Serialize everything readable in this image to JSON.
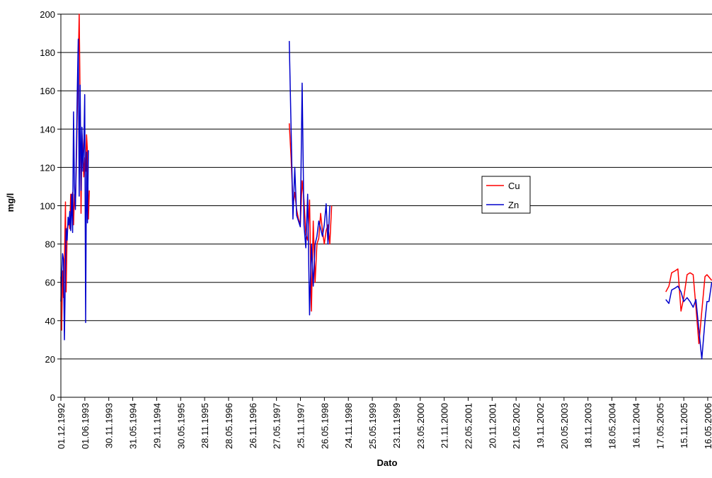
{
  "chart_data": {
    "type": "line",
    "title": "",
    "xlabel": "Dato",
    "ylabel": "mg/l",
    "ylim": [
      0,
      200
    ],
    "yticks": [
      0,
      20,
      40,
      60,
      80,
      100,
      120,
      140,
      160,
      180,
      200
    ],
    "grid": "horizontal",
    "legend_position": "right-center",
    "x_tick_labels": [
      "01.12.1992",
      "01.06.1993",
      "30.11.1993",
      "31.05.1994",
      "29.11.1994",
      "30.05.1995",
      "28.11.1995",
      "28.05.1996",
      "26.11.1996",
      "27.05.1997",
      "25.11.1997",
      "26.05.1998",
      "24.11.1998",
      "25.05.1999",
      "23.11.1999",
      "23.05.2000",
      "21.11.2000",
      "22.05.2001",
      "20.11.2001",
      "21.05.2002",
      "19.11.2002",
      "20.05.2003",
      "18.11.2003",
      "18.05.2004",
      "16.11.2004",
      "17.05.2005",
      "15.11.2005",
      "16.05.2006"
    ],
    "series": [
      {
        "name": "Cu",
        "color": "#ff0000",
        "segments": [
          [
            [
              "01.12.1992",
              63
            ],
            [
              "07.12.1992",
              35
            ],
            [
              "14.12.1992",
              66
            ],
            [
              "21.12.1992",
              52
            ],
            [
              "28.12.1992",
              70
            ],
            [
              "05.01.1993",
              102
            ],
            [
              "10.01.1993",
              55
            ],
            [
              "18.01.1993",
              88
            ],
            [
              "25.01.1993",
              90
            ],
            [
              "01.02.1993",
              92
            ],
            [
              "07.02.1993",
              88
            ],
            [
              "14.02.1993",
              106
            ],
            [
              "21.02.1993",
              95
            ],
            [
              "28.02.1993",
              107
            ],
            [
              "07.03.1993",
              90
            ],
            [
              "14.03.1993",
              106
            ],
            [
              "21.03.1993",
              100
            ],
            [
              "28.03.1993",
              120
            ],
            [
              "05.04.1993",
              150
            ],
            [
              "12.04.1993",
              175
            ],
            [
              "19.04.1993",
              200
            ],
            [
              "26.04.1993",
              155
            ],
            [
              "03.05.1993",
              96
            ],
            [
              "10.05.1993",
              138
            ],
            [
              "17.05.1993",
              130
            ],
            [
              "24.05.1993",
              115
            ],
            [
              "31.05.1993",
              125
            ],
            [
              "07.06.1993",
              118
            ],
            [
              "14.06.1993",
              137
            ],
            [
              "21.06.1993",
              128
            ],
            [
              "28.06.1993",
              93
            ],
            [
              "05.07.1993",
              108
            ]
          ],
          [
            [
              "01.09.1997",
              143
            ],
            [
              "15.09.1997",
              125
            ],
            [
              "29.09.1997",
              100
            ],
            [
              "13.10.1997",
              107
            ],
            [
              "27.10.1997",
              98
            ],
            [
              "10.11.1997",
              93
            ],
            [
              "24.11.1997",
              90
            ],
            [
              "08.12.1997",
              113
            ],
            [
              "22.12.1997",
              103
            ],
            [
              "05.01.1998",
              85
            ],
            [
              "19.01.1998",
              82
            ],
            [
              "02.02.1998",
              103
            ],
            [
              "16.02.1998",
              45
            ],
            [
              "02.03.1998",
              92
            ],
            [
              "16.03.1998",
              60
            ],
            [
              "30.03.1998",
              80
            ],
            [
              "13.04.1998",
              83
            ],
            [
              "27.04.1998",
              96
            ],
            [
              "11.05.1998",
              87
            ],
            [
              "25.05.1998",
              80
            ],
            [
              "08.06.1998",
              87
            ],
            [
              "22.06.1998",
              90
            ],
            [
              "06.07.1998",
              80
            ],
            [
              "20.07.1998",
              100
            ]
          ]
        ]
      },
      {
        "name": "Zn",
        "color": "#0000cc",
        "segments": [
          [
            [
              "01.12.1992",
              50
            ],
            [
              "07.12.1992",
              63
            ],
            [
              "14.12.1992",
              75
            ],
            [
              "21.12.1992",
              72
            ],
            [
              "28.12.1992",
              30
            ],
            [
              "05.01.1993",
              68
            ],
            [
              "10.01.1993",
              88
            ],
            [
              "18.01.1993",
              82
            ],
            [
              "25.01.1993",
              94
            ],
            [
              "01.02.1993",
              90
            ],
            [
              "07.02.1993",
              97
            ],
            [
              "14.02.1993",
              87
            ],
            [
              "21.02.1993",
              106
            ],
            [
              "28.02.1993",
              86
            ],
            [
              "07.03.1993",
              149
            ],
            [
              "14.03.1993",
              110
            ],
            [
              "21.03.1993",
              98
            ],
            [
              "28.03.1993",
              126
            ],
            [
              "05.04.1993",
              160
            ],
            [
              "12.04.1993",
              187
            ],
            [
              "19.04.1993",
              105
            ],
            [
              "26.04.1993",
              163
            ],
            [
              "03.05.1993",
              108
            ],
            [
              "10.05.1993",
              141
            ],
            [
              "17.05.1993",
              118
            ],
            [
              "24.05.1993",
              130
            ],
            [
              "31.05.1993",
              158
            ],
            [
              "07.06.1993",
              39
            ],
            [
              "14.06.1993",
              128
            ],
            [
              "21.06.1993",
              91
            ],
            [
              "28.06.1993",
              129
            ]
          ],
          [
            [
              "01.09.1997",
              186
            ],
            [
              "15.09.1997",
              140
            ],
            [
              "29.09.1997",
              93
            ],
            [
              "13.10.1997",
              120
            ],
            [
              "27.10.1997",
              95
            ],
            [
              "10.11.1997",
              92
            ],
            [
              "24.11.1997",
              89
            ],
            [
              "08.12.1997",
              164
            ],
            [
              "22.12.1997",
              90
            ],
            [
              "05.01.1998",
              78
            ],
            [
              "19.01.1998",
              106
            ],
            [
              "02.02.1998",
              43
            ],
            [
              "16.02.1998",
              80
            ],
            [
              "02.03.1998",
              58
            ],
            [
              "16.03.1998",
              80
            ],
            [
              "30.03.1998",
              84
            ],
            [
              "13.04.1998",
              92
            ],
            [
              "27.04.1998",
              88
            ],
            [
              "11.05.1998",
              84
            ],
            [
              "25.05.1998",
              90
            ],
            [
              "08.06.1998",
              101
            ],
            [
              "22.06.1998",
              80
            ],
            [
              "06.07.1998",
              100
            ]
          ],
          [
            [
              "01.07.2005",
              51
            ],
            [
              "25.07.2005",
              49
            ],
            [
              "15.08.2005",
              56
            ],
            [
              "10.09.2005",
              57
            ],
            [
              "01.10.2005",
              58
            ],
            [
              "25.10.2005",
              55
            ],
            [
              "15.11.2005",
              50
            ],
            [
              "10.12.2005",
              52
            ],
            [
              "01.01.2006",
              50
            ],
            [
              "25.01.2006",
              47
            ],
            [
              "15.02.2006",
              51
            ],
            [
              "10.03.2006",
              35
            ],
            [
              "01.04.2006",
              20
            ],
            [
              "25.04.2006",
              40
            ],
            [
              "10.05.2006",
              50
            ],
            [
              "25.05.2006",
              50
            ],
            [
              "15.06.2006",
              60
            ]
          ]
        ]
      }
    ],
    "extra_segments_cu": [
      [
        [
          "01.07.2005",
          55
        ],
        [
          "25.07.2005",
          58
        ],
        [
          "15.08.2005",
          65
        ],
        [
          "10.09.2005",
          66
        ],
        [
          "01.10.2005",
          67
        ],
        [
          "25.10.2005",
          45
        ],
        [
          "15.11.2005",
          52
        ],
        [
          "10.12.2005",
          64
        ],
        [
          "01.01.2006",
          65
        ],
        [
          "25.01.2006",
          64
        ],
        [
          "15.02.2006",
          47
        ],
        [
          "10.03.2006",
          28
        ],
        [
          "01.04.2006",
          45
        ],
        [
          "25.04.2006",
          63
        ],
        [
          "10.05.2006",
          64
        ],
        [
          "15.06.2006",
          61
        ]
      ]
    ]
  }
}
